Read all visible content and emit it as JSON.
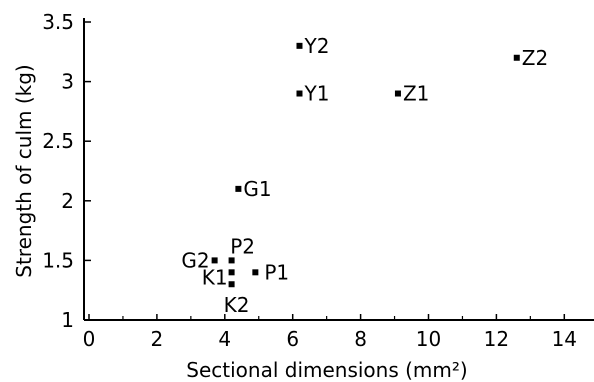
{
  "chart_data": {
    "type": "scatter",
    "xlabel": "Sectional dimensions (mm²)",
    "ylabel": "Strength of culm (kg)",
    "xlim": [
      0,
      15
    ],
    "ylim": [
      1,
      3.5
    ],
    "xticks": [
      0,
      2,
      4,
      6,
      8,
      10,
      12,
      14
    ],
    "yticks": [
      1,
      1.5,
      2,
      2.5,
      3,
      3.5
    ],
    "xtick_labels": [
      "0",
      "2",
      "4",
      "6",
      "8",
      "10",
      "12",
      "14"
    ],
    "ytick_labels": [
      "1",
      "1.5",
      "2",
      "2.5",
      "3",
      "3.5"
    ],
    "grid": false,
    "points": [
      {
        "label": "Y2",
        "x": 6.2,
        "y": 3.3
      },
      {
        "label": "Z2",
        "x": 12.6,
        "y": 3.2
      },
      {
        "label": "Y1",
        "x": 6.2,
        "y": 2.9
      },
      {
        "label": "Z1",
        "x": 9.1,
        "y": 2.9
      },
      {
        "label": "G1",
        "x": 4.4,
        "y": 2.1
      },
      {
        "label": "G2",
        "x": 3.7,
        "y": 1.5
      },
      {
        "label": "P2",
        "x": 4.2,
        "y": 1.5
      },
      {
        "label": "P1",
        "x": 4.9,
        "y": 1.4
      },
      {
        "label": "K1",
        "x": 4.2,
        "y": 1.4
      },
      {
        "label": "K2",
        "x": 4.2,
        "y": 1.3
      }
    ]
  }
}
